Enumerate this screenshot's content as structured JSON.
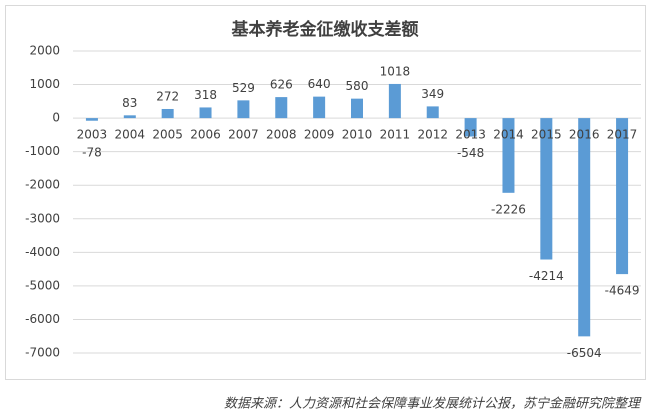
{
  "chart_data": {
    "type": "bar",
    "title": "基本养老金征缴收支差额",
    "categories": [
      "2003",
      "2004",
      "2005",
      "2006",
      "2007",
      "2008",
      "2009",
      "2010",
      "2011",
      "2012",
      "2013",
      "2014",
      "2015",
      "2016",
      "2017"
    ],
    "values": [
      -78,
      83,
      272,
      318,
      529,
      626,
      640,
      580,
      1018,
      349,
      -548,
      -2226,
      -4214,
      -6504,
      -4649
    ],
    "color": "#5b9bd5",
    "ylim": [
      -7000,
      2000
    ],
    "yticks": [
      -7000,
      -6000,
      -5000,
      -4000,
      -3000,
      -2000,
      -1000,
      0,
      1000,
      2000
    ],
    "grid": true,
    "source": "数据来源：人力资源和社会保障事业发展统计公报，苏宁金融研究院整理"
  }
}
